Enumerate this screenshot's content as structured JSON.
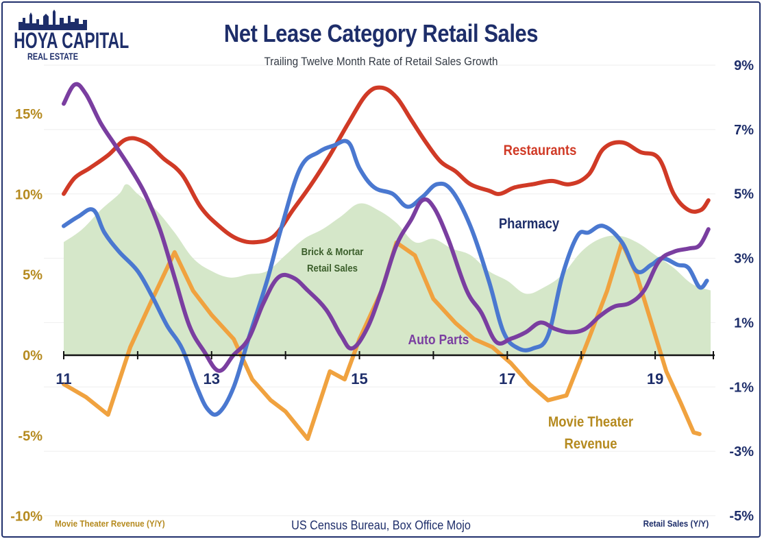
{
  "title": "Net Lease Category Retail Sales",
  "subtitle": "Trailing Twelve Month Rate of Retail Sales Growth",
  "logo": {
    "line1": "HOYA CAPITAL",
    "line2": "REAL ESTATE"
  },
  "source": "US Census Bureau, Box Office Mojo",
  "left_axis_title": "Movie Theater Revenue (Y/Y)",
  "right_axis_title": "Retail Sales (Y/Y)",
  "colors": {
    "restaurants": "#d03a26",
    "pharmacy": "#4a78d0",
    "auto_parts": "#7a3ea0",
    "movie": "#f0a23f",
    "brick_mortar": "#d3e6c6",
    "left_axis_text": "#b58a1f",
    "right_axis_text": "#1e2e6a"
  },
  "chart_data": {
    "type": "line",
    "x_axis": {
      "ticks": [
        "11",
        "13",
        "15",
        "17",
        "19"
      ],
      "tick_years": [
        2011,
        2013,
        2015,
        2017,
        2019
      ],
      "range": [
        2011.0,
        2019.75
      ]
    },
    "left_axis": {
      "ticks": [
        "15%",
        "10%",
        "5%",
        "0%",
        "-5%",
        "-10%"
      ],
      "tick_values": [
        15,
        10,
        5,
        0,
        -5,
        -10
      ],
      "range": [
        -10,
        17
      ]
    },
    "right_axis": {
      "ticks": [
        "9%",
        "7%",
        "5%",
        "3%",
        "1%",
        "-1%",
        "-3%",
        "-5%"
      ],
      "tick_values": [
        9,
        7,
        5,
        3,
        1,
        -1,
        -3,
        -5
      ],
      "range": [
        -5,
        9
      ]
    },
    "series": [
      {
        "name": "Brick & Mortar Retail Sales",
        "axis": "right",
        "style": "area",
        "x": [
          2011.0,
          2011.25,
          2011.5,
          2011.75,
          2011.85,
          2012.0,
          2012.25,
          2012.5,
          2012.75,
          2013.0,
          2013.25,
          2013.5,
          2013.75,
          2014.0,
          2014.25,
          2014.5,
          2014.75,
          2015.0,
          2015.25,
          2015.5,
          2015.75,
          2016.0,
          2016.25,
          2016.5,
          2016.75,
          2017.0,
          2017.25,
          2017.5,
          2017.75,
          2018.0,
          2018.25,
          2018.5,
          2018.75,
          2019.0,
          2019.25,
          2019.5,
          2019.75
        ],
        "values": [
          3.5,
          3.9,
          4.5,
          5.0,
          5.3,
          5.0,
          4.5,
          3.8,
          3.0,
          2.6,
          2.4,
          2.5,
          2.6,
          3.1,
          3.6,
          3.9,
          4.3,
          4.7,
          4.5,
          4.1,
          3.5,
          3.6,
          3.3,
          3.1,
          2.6,
          2.3,
          1.9,
          2.1,
          2.5,
          3.2,
          3.6,
          3.7,
          3.5,
          3.1,
          2.7,
          2.2,
          2.0
        ]
      },
      {
        "name": "Restaurants",
        "axis": "right",
        "style": "line",
        "x": [
          2011.0,
          2011.15,
          2011.35,
          2011.6,
          2011.85,
          2012.1,
          2012.35,
          2012.6,
          2012.85,
          2013.1,
          2013.35,
          2013.6,
          2013.85,
          2014.1,
          2014.35,
          2014.6,
          2014.85,
          2015.1,
          2015.3,
          2015.5,
          2015.7,
          2015.9,
          2016.1,
          2016.3,
          2016.5,
          2016.75,
          2016.9,
          2017.1,
          2017.35,
          2017.6,
          2017.85,
          2018.1,
          2018.3,
          2018.55,
          2018.8,
          2019.05,
          2019.25,
          2019.45,
          2019.62,
          2019.72
        ],
        "values": [
          5.0,
          5.5,
          5.8,
          6.2,
          6.7,
          6.6,
          6.1,
          5.6,
          4.6,
          4.0,
          3.6,
          3.5,
          3.7,
          4.5,
          5.3,
          6.2,
          7.2,
          8.1,
          8.3,
          8.0,
          7.3,
          6.6,
          6.0,
          5.7,
          5.3,
          5.1,
          5.0,
          5.2,
          5.3,
          5.4,
          5.3,
          5.6,
          6.4,
          6.6,
          6.3,
          6.1,
          5.0,
          4.5,
          4.5,
          4.8
        ]
      },
      {
        "name": "Pharmacy",
        "axis": "right",
        "style": "line",
        "x": [
          2011.0,
          2011.2,
          2011.4,
          2011.55,
          2011.75,
          2012.0,
          2012.2,
          2012.4,
          2012.6,
          2012.8,
          2012.95,
          2013.1,
          2013.3,
          2013.5,
          2013.75,
          2013.95,
          2014.2,
          2014.45,
          2014.65,
          2014.85,
          2015.0,
          2015.2,
          2015.45,
          2015.65,
          2015.85,
          2016.05,
          2016.25,
          2016.5,
          2016.75,
          2016.95,
          2017.15,
          2017.35,
          2017.55,
          2017.75,
          2017.95,
          2018.1,
          2018.3,
          2018.55,
          2018.75,
          2018.95,
          2019.1,
          2019.3,
          2019.45,
          2019.6,
          2019.7
        ],
        "values": [
          4.0,
          4.3,
          4.5,
          3.8,
          3.2,
          2.6,
          1.8,
          0.9,
          0.2,
          -1.0,
          -1.7,
          -1.8,
          -1.0,
          0.5,
          2.3,
          4.0,
          5.8,
          6.3,
          6.5,
          6.6,
          5.8,
          5.2,
          5.0,
          4.6,
          4.9,
          5.3,
          5.1,
          4.0,
          2.3,
          0.7,
          0.2,
          0.2,
          0.6,
          2.5,
          3.7,
          3.8,
          4.0,
          3.5,
          2.6,
          2.8,
          3.0,
          2.8,
          2.7,
          2.1,
          2.3
        ]
      },
      {
        "name": "Auto Parts",
        "axis": "right",
        "style": "line",
        "x": [
          2011.0,
          2011.15,
          2011.3,
          2011.5,
          2011.7,
          2011.9,
          2012.1,
          2012.3,
          2012.5,
          2012.7,
          2012.9,
          2013.1,
          2013.3,
          2013.5,
          2013.7,
          2013.9,
          2014.1,
          2014.3,
          2014.55,
          2014.75,
          2014.9,
          2015.1,
          2015.3,
          2015.5,
          2015.7,
          2015.85,
          2016.0,
          2016.2,
          2016.45,
          2016.65,
          2016.85,
          2017.05,
          2017.25,
          2017.45,
          2017.65,
          2017.85,
          2018.05,
          2018.25,
          2018.45,
          2018.65,
          2018.85,
          2019.05,
          2019.25,
          2019.45,
          2019.6,
          2019.72
        ],
        "values": [
          7.8,
          8.4,
          8.1,
          7.2,
          6.5,
          5.8,
          5.0,
          3.9,
          2.4,
          0.9,
          0.1,
          -0.5,
          0.0,
          0.5,
          1.6,
          2.4,
          2.4,
          2.0,
          1.4,
          0.6,
          0.2,
          0.8,
          2.0,
          3.4,
          4.2,
          4.8,
          4.6,
          3.6,
          2.0,
          1.3,
          0.4,
          0.5,
          0.7,
          1.0,
          0.8,
          0.7,
          0.8,
          1.2,
          1.5,
          1.6,
          2.0,
          2.9,
          3.2,
          3.3,
          3.4,
          3.9
        ]
      },
      {
        "name": "Movie Theater Revenue",
        "axis": "left",
        "style": "line",
        "x": [
          2011.0,
          2011.3,
          2011.6,
          2011.9,
          2012.2,
          2012.5,
          2012.75,
          2013.0,
          2013.3,
          2013.55,
          2013.8,
          2014.0,
          2014.3,
          2014.6,
          2014.8,
          2015.0,
          2015.3,
          2015.5,
          2015.75,
          2016.0,
          2016.3,
          2016.55,
          2016.8,
          2017.05,
          2017.3,
          2017.55,
          2017.8,
          2018.1,
          2018.35,
          2018.55,
          2018.75,
          2018.95,
          2019.15,
          2019.35,
          2019.52,
          2019.6
        ],
        "values": [
          -1.8,
          -2.6,
          -3.7,
          0.5,
          3.5,
          6.4,
          4.0,
          2.5,
          1.0,
          -1.5,
          -2.8,
          -3.5,
          -5.2,
          -1.0,
          -1.5,
          1.0,
          4.0,
          7.0,
          6.2,
          3.5,
          2.0,
          1.0,
          0.5,
          -0.5,
          -1.8,
          -2.8,
          -2.5,
          1.0,
          4.0,
          7.0,
          5.0,
          2.0,
          -1.0,
          -3.0,
          -4.8,
          -4.9
        ]
      }
    ],
    "annotations": [
      {
        "text": "Restaurants",
        "series": "Restaurants"
      },
      {
        "text": "Pharmacy",
        "series": "Pharmacy"
      },
      {
        "text": "Brick & Mortar Retail Sales",
        "series": "Brick & Mortar Retail Sales"
      },
      {
        "text": "Auto Parts",
        "series": "Auto Parts"
      },
      {
        "text": "Movie Theater Revenue",
        "series": "Movie Theater Revenue"
      }
    ]
  }
}
